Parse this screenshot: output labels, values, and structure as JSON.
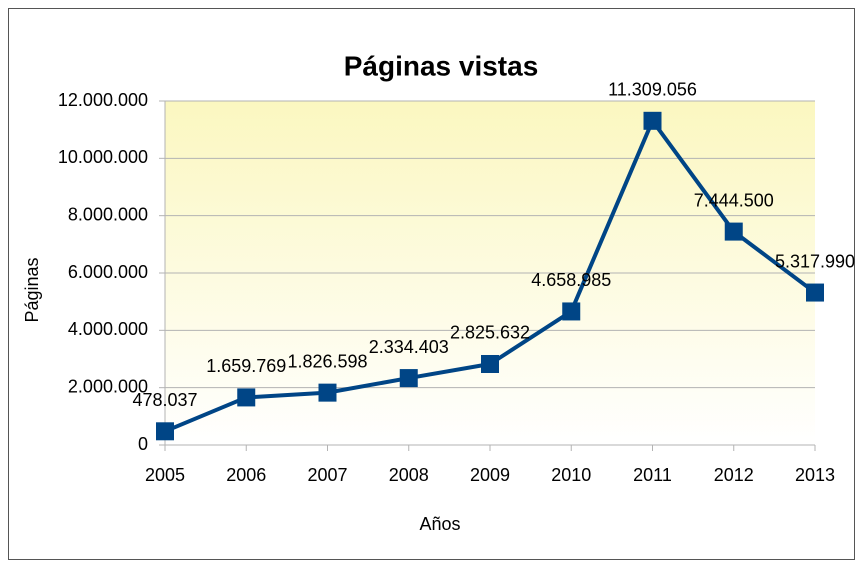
{
  "chart_data": {
    "type": "line",
    "title": "Páginas vistas",
    "x_label": "Años",
    "y_label": "Páginas",
    "categories": [
      "2005",
      "2006",
      "2007",
      "2008",
      "2009",
      "2010",
      "2011",
      "2012",
      "2013"
    ],
    "series": [
      {
        "name": "Páginas vistas",
        "color": "#004586",
        "values": [
          478037,
          1659769,
          1826598,
          2334403,
          2825632,
          4658985,
          11309056,
          7444500,
          5317990
        ],
        "value_labels": [
          "478.037",
          "1.659.769",
          "1.826.598",
          "2.334.403",
          "2.825.632",
          "4.658.985",
          "11.309.056",
          "7.444.500",
          "5.317.990"
        ]
      }
    ],
    "ylim": [
      0,
      12000000
    ],
    "yticks": [
      0,
      {
        "value": 2000000,
        "label": "2.000.000"
      },
      {
        "value": 4000000,
        "label": "4.000.000"
      },
      {
        "value": 6000000,
        "label": "6.000.000"
      },
      {
        "value": 8000000,
        "label": "8.000.000"
      },
      {
        "value": 10000000,
        "label": "10.000.000"
      },
      {
        "value": 12000000,
        "label": "12.000.000"
      }
    ],
    "grid": true
  }
}
